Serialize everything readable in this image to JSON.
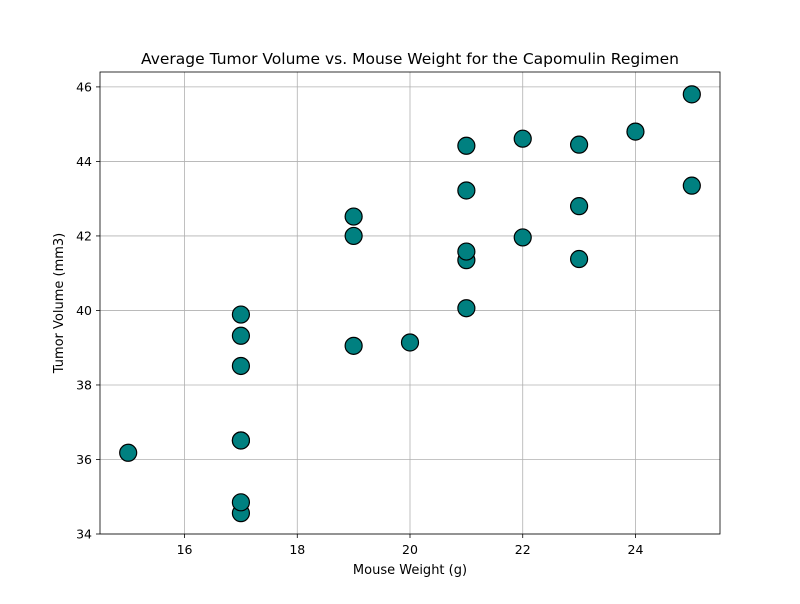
{
  "chart_data": {
    "type": "scatter",
    "title": "Average Tumor Volume vs. Mouse Weight for the Capomulin Regimen",
    "xlabel": "Mouse Weight (g)",
    "ylabel": "Tumor Volume (mm3)",
    "xlim": [
      14.5,
      25.5
    ],
    "ylim": [
      34,
      46.4
    ],
    "xticks": [
      16,
      18,
      20,
      22,
      24
    ],
    "yticks": [
      34,
      36,
      38,
      40,
      42,
      44,
      46
    ],
    "grid": true,
    "marker_color": "#008080",
    "marker_edge_color": "#000000",
    "points": [
      {
        "x": 15,
        "y": 36.18
      },
      {
        "x": 17,
        "y": 34.56
      },
      {
        "x": 17,
        "y": 34.85
      },
      {
        "x": 17,
        "y": 36.51
      },
      {
        "x": 17,
        "y": 36.51
      },
      {
        "x": 17,
        "y": 38.51
      },
      {
        "x": 17,
        "y": 39.32
      },
      {
        "x": 17,
        "y": 39.89
      },
      {
        "x": 19,
        "y": 39.05
      },
      {
        "x": 19,
        "y": 42.0
      },
      {
        "x": 19,
        "y": 42.52
      },
      {
        "x": 20,
        "y": 39.14
      },
      {
        "x": 21,
        "y": 40.06
      },
      {
        "x": 21,
        "y": 41.35
      },
      {
        "x": 21,
        "y": 41.58
      },
      {
        "x": 21,
        "y": 43.22
      },
      {
        "x": 21,
        "y": 44.42
      },
      {
        "x": 22,
        "y": 41.96
      },
      {
        "x": 22,
        "y": 44.61
      },
      {
        "x": 23,
        "y": 41.38
      },
      {
        "x": 23,
        "y": 42.8
      },
      {
        "x": 23,
        "y": 44.45
      },
      {
        "x": 24,
        "y": 44.8
      },
      {
        "x": 25,
        "y": 43.35
      },
      {
        "x": 25,
        "y": 45.8
      }
    ]
  }
}
